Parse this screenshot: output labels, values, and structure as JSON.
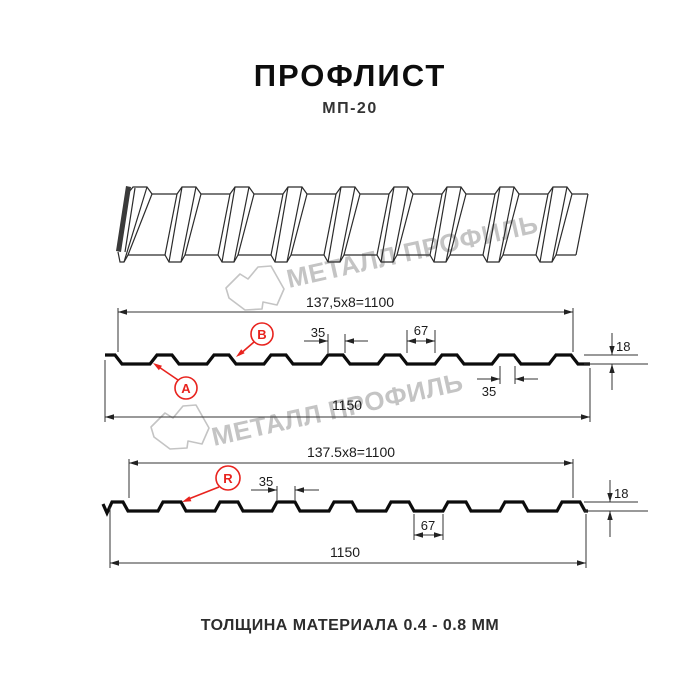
{
  "header": {
    "title": "ПРОФЛИСТ",
    "subtitle": "МП-20"
  },
  "footer": {
    "text": "ТОЛЩИНА МАТЕРИАЛА 0.4 - 0.8 ММ"
  },
  "watermark": {
    "text": "МЕТАЛЛ ПРОФИЛЬ",
    "color": "#c4c4c4"
  },
  "colors": {
    "red": "#e8231e",
    "line": "#222222"
  },
  "profile_a": {
    "dim_pitch": "137,5x8=1100",
    "dim_rib_top": "35",
    "dim_flat": "67",
    "dim_rib_bottom": "35",
    "dim_height": "18",
    "dim_width": "1150",
    "label_a": "A",
    "label_b": "B"
  },
  "profile_r": {
    "dim_pitch": "137.5x8=1100",
    "dim_rib_top": "35",
    "dim_flat": "67",
    "dim_height": "18",
    "dim_width": "1150",
    "label_r": "R"
  }
}
